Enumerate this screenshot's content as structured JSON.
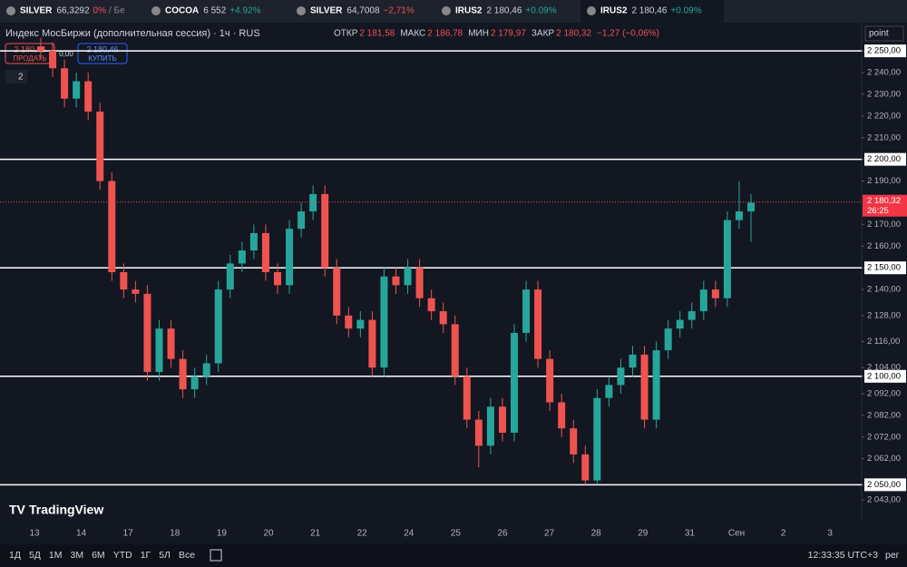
{
  "tabs": [
    {
      "symbol": "SILVER",
      "price": "66,3292",
      "change": "0%",
      "extra": "/ Бе"
    },
    {
      "symbol": "COCOA",
      "price": "6 552",
      "change": "+4.92%"
    },
    {
      "symbol": "SILVER",
      "price": "64,7008",
      "change": "−2,71%"
    },
    {
      "symbol": "IRUS2",
      "price": "2 180,46",
      "change": "+0.09%"
    },
    {
      "symbol": "IRUS2",
      "price": "2 180,46",
      "change": "+0.09%"
    }
  ],
  "header": {
    "title": "Индекс МосБиржи (дополнительная сессия) · 1ч · RUS",
    "open_label": "ОТКР",
    "open": "2 181,58",
    "high_label": "МАКС",
    "high": "2 186,78",
    "low_label": "МИН",
    "low": "2 179,97",
    "close_label": "ЗАКР",
    "close": "2 180,32",
    "change": "−1,27 (−0,06%)"
  },
  "trade": {
    "sell_price": "2 180,46",
    "sell": "ПРОДАТЬ",
    "spread": "0,00",
    "buy_price": "2 180,46",
    "buy": "КУПИТЬ",
    "indicators": "2"
  },
  "scale_mode": "point",
  "brand": "TradingView",
  "chart_data": {
    "type": "candlestick",
    "up_color": "#26a69a",
    "down_color": "#ef5350",
    "candles": [
      [
        2252,
        2256,
        2246,
        2250
      ],
      [
        2250,
        2254,
        2238,
        2242
      ],
      [
        2242,
        2246,
        2224,
        2228
      ],
      [
        2228,
        2240,
        2224,
        2236
      ],
      [
        2236,
        2240,
        2218,
        2222
      ],
      [
        2222,
        2226,
        2186,
        2190
      ],
      [
        2190,
        2194,
        2144,
        2148
      ],
      [
        2148,
        2152,
        2136,
        2140
      ],
      [
        2140,
        2144,
        2134,
        2138
      ],
      [
        2138,
        2142,
        2098,
        2102
      ],
      [
        2102,
        2126,
        2098,
        2122
      ],
      [
        2122,
        2126,
        2104,
        2108
      ],
      [
        2108,
        2112,
        2090,
        2094
      ],
      [
        2094,
        2104,
        2090,
        2100
      ],
      [
        2100,
        2110,
        2096,
        2106
      ],
      [
        2106,
        2144,
        2102,
        2140
      ],
      [
        2140,
        2156,
        2136,
        2152
      ],
      [
        2152,
        2162,
        2148,
        2158
      ],
      [
        2158,
        2170,
        2154,
        2166
      ],
      [
        2166,
        2170,
        2144,
        2148
      ],
      [
        2148,
        2152,
        2138,
        2142
      ],
      [
        2142,
        2172,
        2138,
        2168
      ],
      [
        2168,
        2180,
        2164,
        2176
      ],
      [
        2176,
        2188,
        2172,
        2184
      ],
      [
        2184,
        2188,
        2146,
        2150
      ],
      [
        2150,
        2154,
        2124,
        2128
      ],
      [
        2128,
        2132,
        2118,
        2122
      ],
      [
        2122,
        2130,
        2118,
        2126
      ],
      [
        2126,
        2130,
        2100,
        2104
      ],
      [
        2104,
        2150,
        2100,
        2146
      ],
      [
        2146,
        2150,
        2138,
        2142
      ],
      [
        2142,
        2154,
        2138,
        2150
      ],
      [
        2150,
        2154,
        2132,
        2136
      ],
      [
        2136,
        2140,
        2126,
        2130
      ],
      [
        2130,
        2134,
        2120,
        2124
      ],
      [
        2124,
        2128,
        2096,
        2100
      ],
      [
        2100,
        2104,
        2076,
        2080
      ],
      [
        2080,
        2084,
        2058,
        2068
      ],
      [
        2068,
        2090,
        2064,
        2086
      ],
      [
        2086,
        2090,
        2070,
        2074
      ],
      [
        2074,
        2124,
        2070,
        2120
      ],
      [
        2120,
        2144,
        2116,
        2140
      ],
      [
        2140,
        2144,
        2104,
        2108
      ],
      [
        2108,
        2112,
        2084,
        2088
      ],
      [
        2088,
        2092,
        2072,
        2076
      ],
      [
        2076,
        2080,
        2060,
        2064
      ],
      [
        2064,
        2068,
        2050,
        2052
      ],
      [
        2052,
        2094,
        2050,
        2090
      ],
      [
        2090,
        2100,
        2086,
        2096
      ],
      [
        2096,
        2108,
        2092,
        2104
      ],
      [
        2104,
        2114,
        2100,
        2110
      ],
      [
        2110,
        2114,
        2076,
        2080
      ],
      [
        2080,
        2116,
        2076,
        2112
      ],
      [
        2112,
        2126,
        2108,
        2122
      ],
      [
        2122,
        2130,
        2118,
        2126
      ],
      [
        2126,
        2134,
        2122,
        2130
      ],
      [
        2130,
        2144,
        2126,
        2140
      ],
      [
        2140,
        2144,
        2132,
        2136
      ],
      [
        2136,
        2176,
        2132,
        2172
      ],
      [
        2172,
        2190,
        2168,
        2176
      ],
      [
        2176,
        2184,
        2162,
        2180
      ]
    ],
    "categories": [
      "13",
      "14",
      "17",
      "18",
      "19",
      "20",
      "21",
      "22",
      "24",
      "25",
      "26",
      "27",
      "28",
      "29",
      "31",
      "Сен",
      "2",
      "3"
    ],
    "ylim": [
      2033,
      2263
    ],
    "yticks": [
      {
        "value": 2250,
        "label": "2 250,00"
      },
      {
        "value": 2240,
        "label": "2 240,00"
      },
      {
        "value": 2230,
        "label": "2 230,00"
      },
      {
        "value": 2220,
        "label": "2 220,00"
      },
      {
        "value": 2210,
        "label": "2 210,00"
      },
      {
        "value": 2200,
        "label": "2 200,00"
      },
      {
        "value": 2190,
        "label": "2 190,00"
      },
      {
        "value": 2170,
        "label": "2 170,00"
      },
      {
        "value": 2160,
        "label": "2 160,00"
      },
      {
        "value": 2150,
        "label": "2 150,00"
      },
      {
        "value": 2140,
        "label": "2 140,00"
      },
      {
        "value": 2128,
        "label": "2 128,00"
      },
      {
        "value": 2116,
        "label": "2 116,00"
      },
      {
        "value": 2104,
        "label": "2 104,00"
      },
      {
        "value": 2100,
        "label": "2 100,00"
      },
      {
        "value": 2092,
        "label": "2 092,00"
      },
      {
        "value": 2082,
        "label": "2 082,00"
      },
      {
        "value": 2072,
        "label": "2 072,00"
      },
      {
        "value": 2062,
        "label": "2 062,00"
      },
      {
        "value": 2050,
        "label": "2 050,00"
      },
      {
        "value": 2043,
        "label": "2 043,00"
      }
    ],
    "levels": [
      2250,
      2200,
      2150,
      2100,
      2050
    ],
    "last_price": {
      "value": 2180.32,
      "label": "2 180,32"
    },
    "countdown": "26:25"
  },
  "toolbar": {
    "ranges": [
      "1Д",
      "5Д",
      "1М",
      "3М",
      "6М",
      "YTD",
      "1Г",
      "5Л",
      "Все"
    ],
    "time": "12:33:35 UTC+3",
    "session": "рег"
  }
}
